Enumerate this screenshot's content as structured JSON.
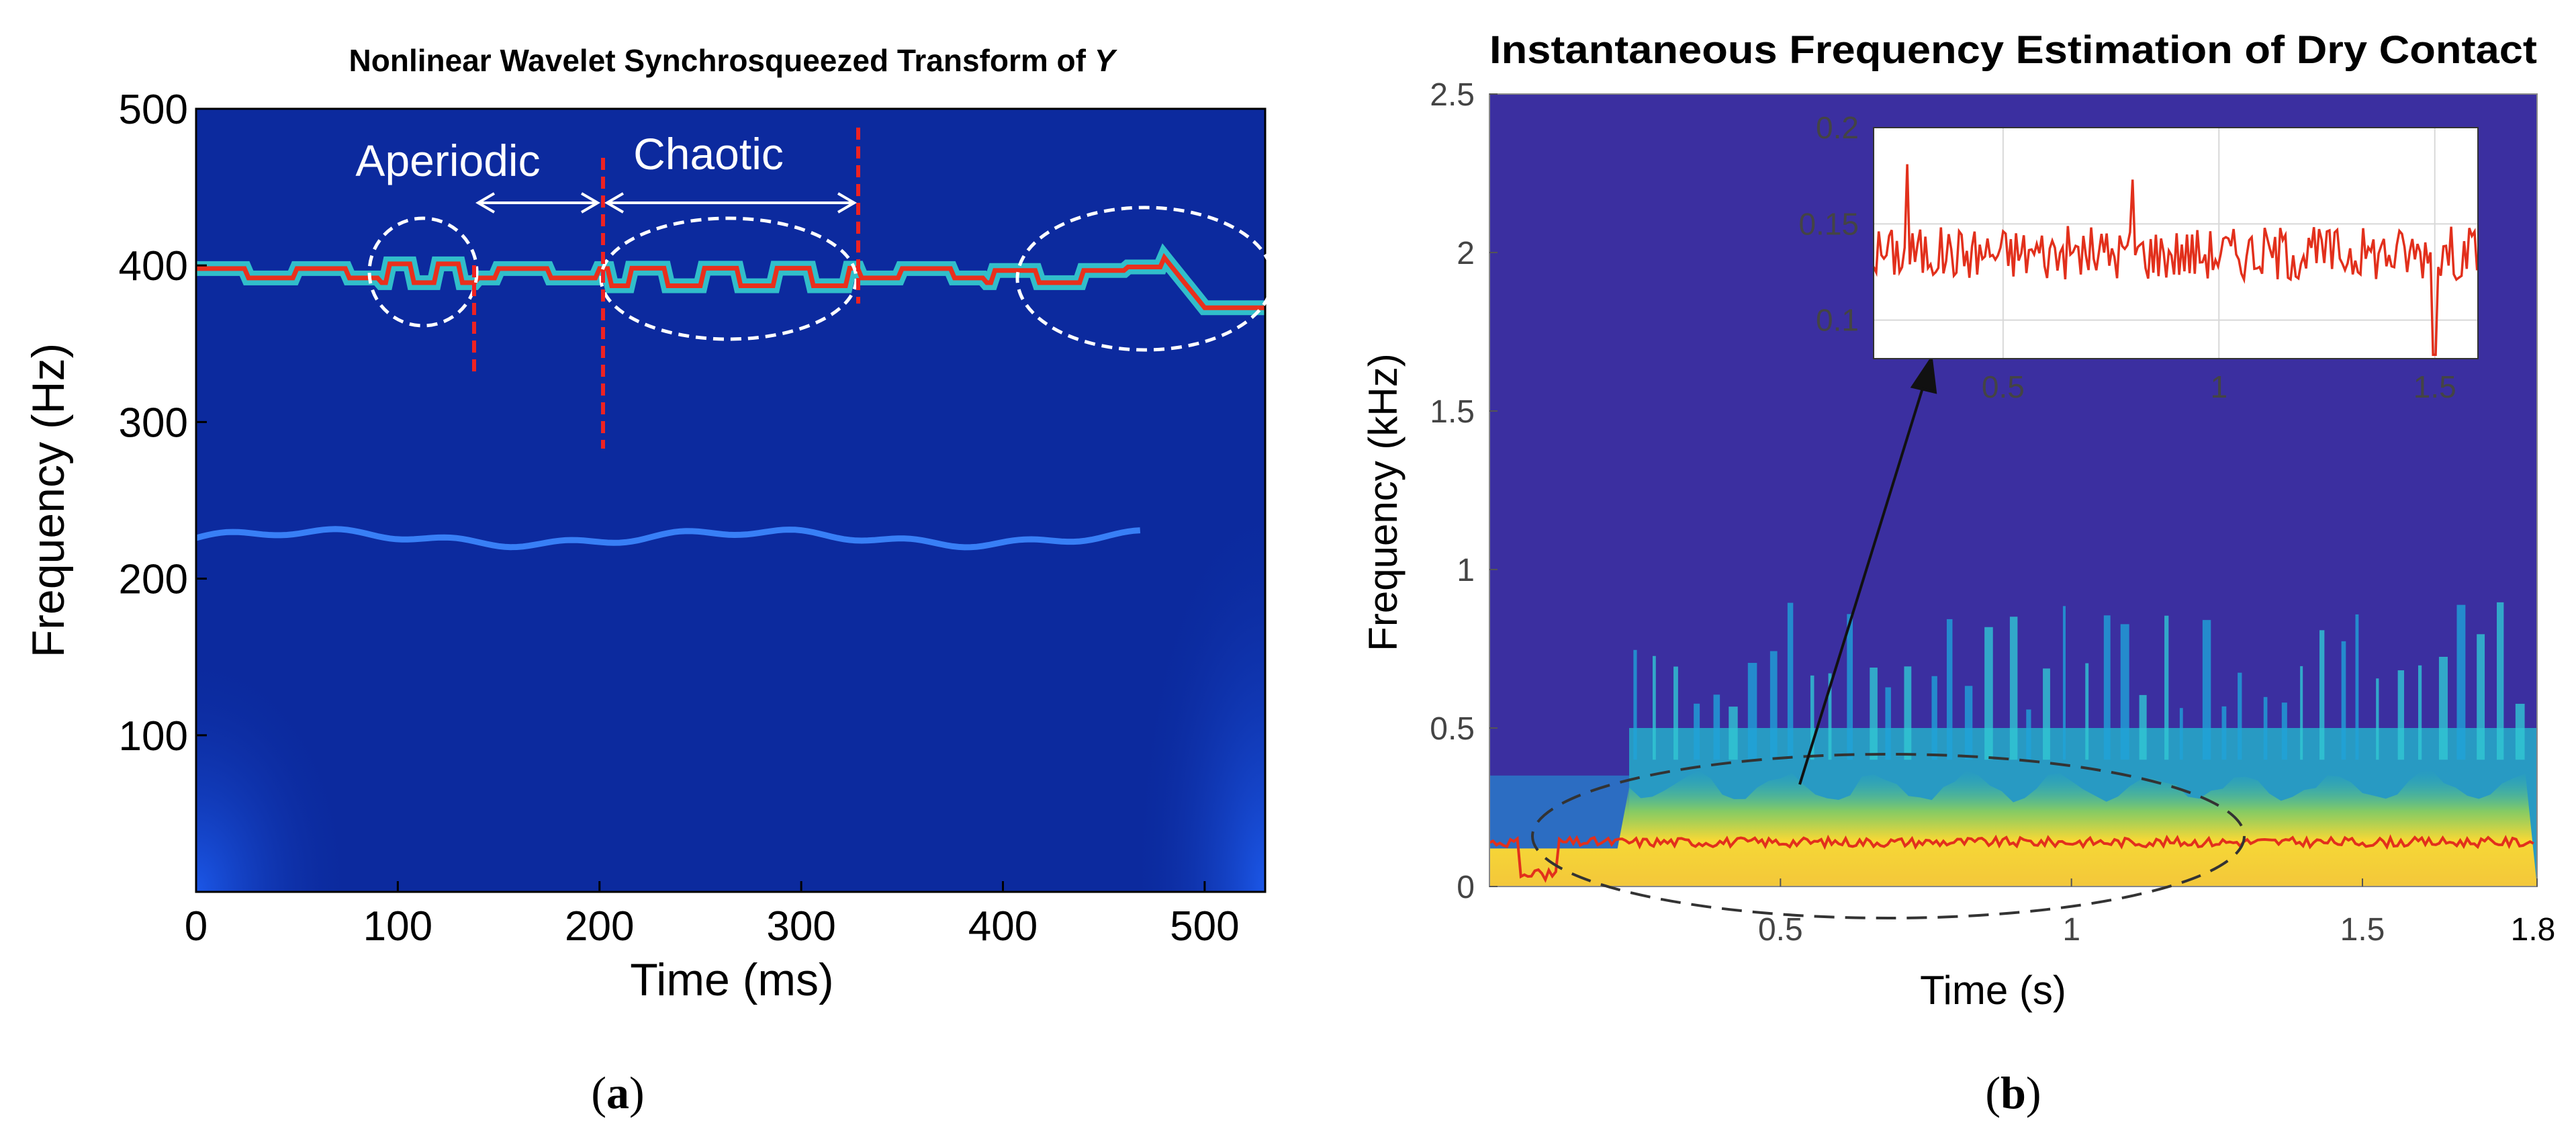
{
  "chart_data": [
    {
      "type": "heatmap",
      "title": "Nonlinear Wavelet Synchrosqueezed Transform of Y",
      "title_main": "Nonlinear Wavelet Synchrosqueezed Transform of ",
      "title_var": "Y",
      "xlabel": "Time (ms)",
      "ylabel": "Frequency (Hz)",
      "xlim": [
        0,
        530
      ],
      "ylim": [
        0,
        500
      ],
      "xticks": [
        0,
        100,
        200,
        300,
        400,
        500
      ],
      "yticks": [
        100,
        200,
        300,
        400,
        500
      ],
      "annotations": {
        "aperiodic": "Aperiodic",
        "chaotic": "Chaotic"
      },
      "regions": {
        "aperiodic_ms": [
          138,
          200
        ],
        "chaotic_ms": [
          200,
          328
        ]
      },
      "ridges": [
        {
          "name": "main",
          "freq_hz": 395
        },
        {
          "name": "secondary",
          "freq_hz": 226
        }
      ],
      "panel_label": "(a)",
      "panel_label_letter": "a"
    },
    {
      "type": "heatmap",
      "title": "Instantaneous Frequency Estimation of Dry Contact",
      "xlabel": "Time (s)",
      "ylabel": "Frequency (kHz)",
      "xlim": [
        0,
        1.8
      ],
      "ylim": [
        0,
        2.5
      ],
      "xticks": [
        "0.5",
        "1",
        "1.5",
        "1.8"
      ],
      "yticks": [
        "0",
        "0.5",
        "1",
        "1.5",
        "2",
        "2.5"
      ],
      "estimated_frequency_khz": 0.14,
      "inset": {
        "xlim": [
          0.2,
          1.6
        ],
        "ylim": [
          0.08,
          0.2
        ],
        "xticks": [
          "0.5",
          "1",
          "1.5"
        ],
        "yticks": [
          "0.1",
          "0.15",
          "0.2"
        ],
        "mean_khz": 0.135
      },
      "panel_label": "(b)",
      "panel_label_letter": "b"
    }
  ]
}
